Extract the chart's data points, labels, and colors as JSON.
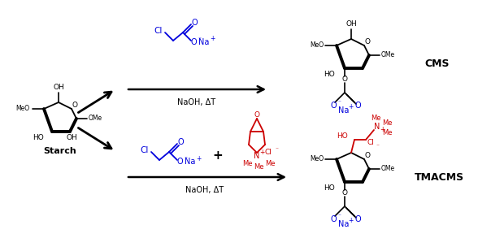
{
  "bg_color": "#ffffff",
  "figsize": [
    5.88,
    2.93
  ],
  "dpi": 100,
  "black": "#000000",
  "blue": "#0000dd",
  "red": "#cc0000",
  "starch_label": "Starch",
  "cms_label": "CMS",
  "tmacms_label": "TMACMS",
  "naoh_dt": "NaOH, ΔT"
}
